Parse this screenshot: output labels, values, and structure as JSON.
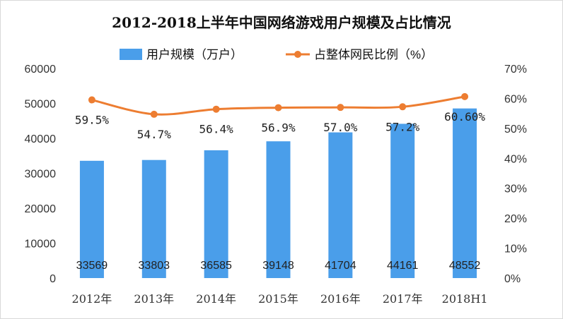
{
  "chart_data": {
    "type": "bar+line",
    "title": "2012-2018上半年中国网络游戏用户规模及占比情况",
    "categories": [
      "2012年",
      "2013年",
      "2014年",
      "2015年",
      "2016年",
      "2017年",
      "2018H1"
    ],
    "series": [
      {
        "name": "用户规模（万户）",
        "type": "bar",
        "axis": "left",
        "color": "#4a9eea",
        "values": [
          33569,
          33803,
          36585,
          39148,
          41704,
          44161,
          48552
        ],
        "labels": [
          "33569",
          "33803",
          "36585",
          "39148",
          "41704",
          "44161",
          "48552"
        ]
      },
      {
        "name": "占整体网民比例（%）",
        "type": "line",
        "axis": "right",
        "color": "#ed7d31",
        "values": [
          59.5,
          54.7,
          56.4,
          56.9,
          57.0,
          57.2,
          60.6
        ],
        "labels": [
          "59.5%",
          "54.7%",
          "56.4%",
          "56.9%",
          "57.0%",
          "57.2%",
          "60.60%"
        ]
      }
    ],
    "left_axis": {
      "min": 0,
      "max": 60000,
      "ticks": [
        "0",
        "10000",
        "20000",
        "30000",
        "40000",
        "50000",
        "60000"
      ]
    },
    "right_axis": {
      "min": 0,
      "max": 70,
      "ticks": [
        "0%",
        "10%",
        "20%",
        "30%",
        "40%",
        "50%",
        "60%",
        "70%"
      ]
    },
    "legend_position": "top",
    "grid": false
  }
}
